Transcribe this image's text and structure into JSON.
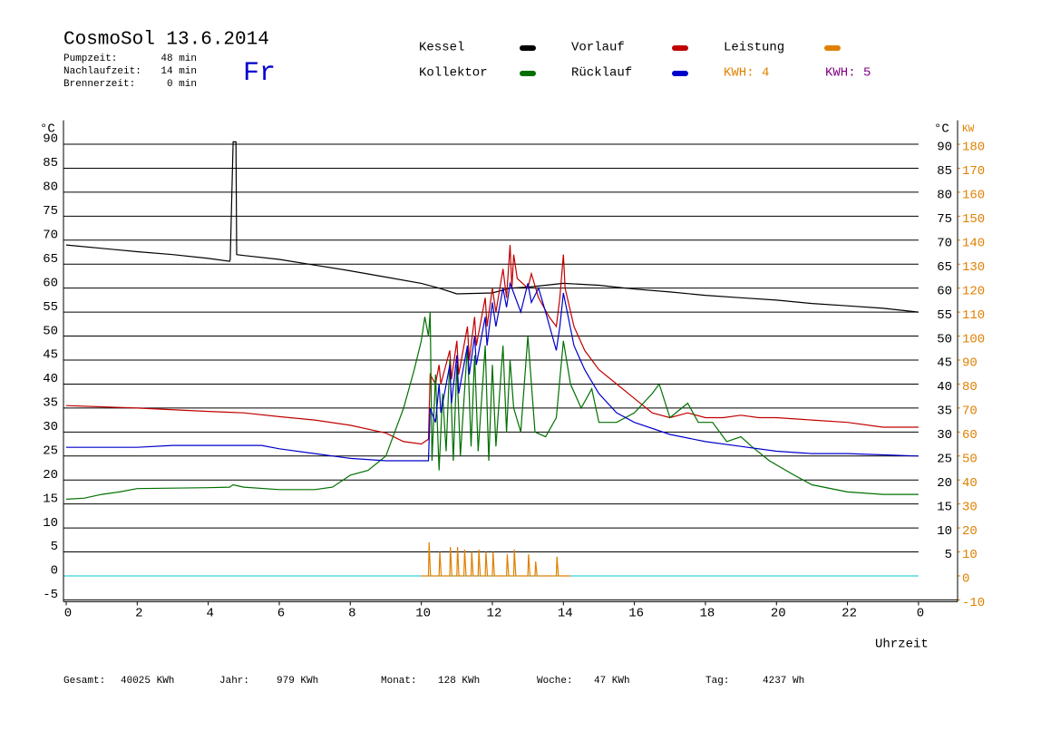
{
  "chart_data": {
    "type": "line",
    "title": "CosmoSol 13.6.2014",
    "info": [
      {
        "label": "Pumpzeit:",
        "value": "48 min"
      },
      {
        "label": "Nachlaufzeit:",
        "value": "14 min"
      },
      {
        "label": "Brennerzeit:",
        "value": "0 min"
      }
    ],
    "weekday": "Fr",
    "y_unit": "°C",
    "y2_unit": "KW",
    "x_label": "Uhrzeit",
    "kwh_labels": [
      {
        "text": "KWH: 4",
        "color": "#e08000"
      },
      {
        "text": "KWH: 5",
        "color": "#800080"
      }
    ],
    "xlim": [
      0,
      25.1
    ],
    "ylim": [
      -5,
      95
    ],
    "y2lim": [
      -10,
      190
    ],
    "xticks": [
      0,
      2,
      4,
      6,
      8,
      10,
      12,
      14,
      16,
      18,
      20,
      22,
      {
        "value": 24,
        "label": "0"
      }
    ],
    "yticks": [
      -5,
      0,
      5,
      10,
      15,
      20,
      25,
      30,
      35,
      40,
      45,
      50,
      55,
      60,
      65,
      70,
      75,
      80,
      85,
      90
    ],
    "y2ticks": [
      -10,
      0,
      10,
      20,
      30,
      40,
      50,
      60,
      70,
      80,
      90,
      100,
      110,
      120,
      130,
      140,
      150,
      160,
      170,
      180
    ],
    "grid": true,
    "series": [
      {
        "name": "Kessel",
        "color": "#000000",
        "x": [
          0,
          1,
          2,
          3,
          4,
          4.6,
          4.62,
          4.7,
          4.78,
          4.8,
          5,
          6,
          7,
          8,
          9,
          10,
          10.5,
          11,
          12,
          12.5,
          13,
          14,
          15,
          16,
          17,
          18,
          19,
          20,
          21,
          22,
          23,
          24
        ],
        "values": [
          69,
          68.3,
          67.6,
          67,
          66.2,
          65.6,
          66,
          90.5,
          90.5,
          67,
          66.8,
          66,
          64.8,
          63.6,
          62.3,
          61,
          60,
          58.8,
          59,
          60,
          60.2,
          61,
          60.6,
          59.8,
          59.2,
          58.5,
          58,
          57.5,
          56.8,
          56.3,
          55.8,
          55
        ]
      },
      {
        "name": "Vorlauf",
        "color": "#c00000",
        "x": [
          0,
          2,
          4,
          5,
          6,
          7,
          8,
          9,
          9.5,
          10,
          10.2,
          10.25,
          10.4,
          10.5,
          10.55,
          10.8,
          10.85,
          11,
          11.05,
          11.3,
          11.35,
          11.5,
          11.55,
          11.8,
          11.85,
          12,
          12.1,
          12.3,
          12.4,
          12.5,
          12.55,
          12.6,
          12.7,
          13,
          13.1,
          13.3,
          13.6,
          13.8,
          13.9,
          14,
          14.05,
          14.3,
          14.6,
          15,
          15.5,
          16,
          16.5,
          17,
          17.5,
          18,
          18.5,
          19,
          19.5,
          20,
          21,
          22,
          23,
          24
        ],
        "values": [
          35.5,
          35,
          34.3,
          34,
          33.2,
          32.5,
          31.4,
          29.8,
          28,
          27.5,
          28.5,
          42,
          40,
          44,
          40,
          47,
          41,
          49,
          42,
          52,
          45,
          54,
          48,
          58,
          52,
          60,
          55,
          64,
          58,
          69,
          60,
          67,
          62,
          60,
          63,
          58,
          54,
          52,
          58,
          67,
          60,
          52,
          47,
          43,
          40,
          37,
          34,
          33,
          34,
          33,
          33,
          33.5,
          33,
          33,
          32.5,
          32,
          31,
          31
        ]
      },
      {
        "name": "Leistung",
        "color": "#e08000",
        "axis": "y2",
        "x": [
          10,
          10.2,
          10.22,
          10.26,
          10.5,
          10.52,
          10.56,
          10.8,
          10.82,
          10.86,
          11,
          11.02,
          11.06,
          11.2,
          11.22,
          11.26,
          11.4,
          11.42,
          11.46,
          11.6,
          11.62,
          11.66,
          11.8,
          11.82,
          11.86,
          12,
          12.02,
          12.06,
          12.4,
          12.42,
          12.46,
          12.6,
          12.62,
          12.66,
          13,
          13.02,
          13.06,
          13.2,
          13.22,
          13.26,
          13.8,
          13.82,
          13.86,
          14.2
        ],
        "values": [
          0,
          0,
          14,
          0,
          0,
          10,
          0,
          0,
          12,
          0,
          0,
          12,
          0,
          0,
          11,
          0,
          0,
          10,
          0,
          0,
          11,
          0,
          0,
          10,
          0,
          0,
          10,
          0,
          0,
          9,
          0,
          0,
          11,
          0,
          0,
          9,
          0,
          0,
          6,
          0,
          0,
          8,
          0,
          0
        ]
      },
      {
        "name": "Kollektor",
        "color": "#007000",
        "x": [
          0,
          0.5,
          1,
          1.5,
          2,
          3,
          4,
          4.6,
          4.7,
          5,
          6,
          7,
          7.5,
          8,
          8.5,
          9,
          9.5,
          9.8,
          10,
          10.1,
          10.2,
          10.25,
          10.3,
          10.4,
          10.5,
          10.6,
          10.7,
          10.8,
          10.9,
          11,
          11.1,
          11.3,
          11.4,
          11.5,
          11.6,
          11.8,
          11.9,
          12,
          12.1,
          12.3,
          12.4,
          12.5,
          12.6,
          12.8,
          13,
          13.2,
          13.5,
          13.8,
          14,
          14.2,
          14.5,
          14.8,
          15,
          15.5,
          16,
          16.5,
          16.7,
          17,
          17.5,
          17.8,
          18.2,
          18.6,
          19,
          19.3,
          19.8,
          20.5,
          21,
          22,
          23,
          24
        ],
        "values": [
          16,
          16.2,
          17,
          17.5,
          18.2,
          18.3,
          18.4,
          18.5,
          19,
          18.5,
          18,
          18,
          18.5,
          21,
          22,
          25,
          35,
          43,
          49,
          54,
          50,
          55,
          24,
          42,
          22,
          38,
          26,
          45,
          24,
          44,
          25,
          48,
          27,
          46,
          26,
          48,
          24,
          44,
          27,
          48,
          30,
          45,
          35,
          30,
          50,
          30,
          29,
          33,
          49,
          40,
          35,
          39,
          32,
          32,
          34,
          38,
          40,
          33,
          36,
          32,
          32,
          28,
          29,
          27,
          24,
          21,
          19,
          17.5,
          17,
          17
        ]
      },
      {
        "name": "Rücklauf",
        "color": "#0000cc",
        "x": [
          0,
          2,
          3,
          5.5,
          6,
          7,
          8,
          9,
          10.2,
          10.25,
          10.4,
          10.5,
          10.55,
          10.8,
          10.85,
          11,
          11.05,
          11.3,
          11.35,
          11.5,
          11.55,
          11.8,
          11.85,
          12,
          12.1,
          12.3,
          12.4,
          12.5,
          12.6,
          12.8,
          13,
          13.1,
          13.3,
          13.5,
          13.8,
          13.9,
          14,
          14.3,
          14.6,
          15,
          15.5,
          16,
          17,
          18,
          19,
          20,
          21,
          22,
          24
        ],
        "values": [
          26.8,
          26.8,
          27.2,
          27.2,
          26.5,
          25.5,
          24.5,
          24,
          24,
          35,
          32,
          40,
          34,
          44,
          36,
          46,
          38,
          48,
          42,
          50,
          44,
          54,
          48,
          57,
          52,
          60,
          56,
          61,
          59,
          55,
          61,
          57,
          60,
          55,
          47,
          52,
          59,
          48,
          43,
          38,
          34,
          32,
          29.5,
          28,
          27,
          26,
          25.5,
          25.5,
          25
        ]
      }
    ],
    "legend_order": [
      0,
      1,
      2,
      3,
      4
    ],
    "footer": [
      {
        "label": "Gesamt:",
        "value": "40025 KWh"
      },
      {
        "label": "Jahr:",
        "value": "979 KWh"
      },
      {
        "label": "Monat:",
        "value": "128 KWh"
      },
      {
        "label": "Woche:",
        "value": "47 KWh"
      },
      {
        "label": "Tag:",
        "value": "4237 Wh"
      }
    ]
  }
}
